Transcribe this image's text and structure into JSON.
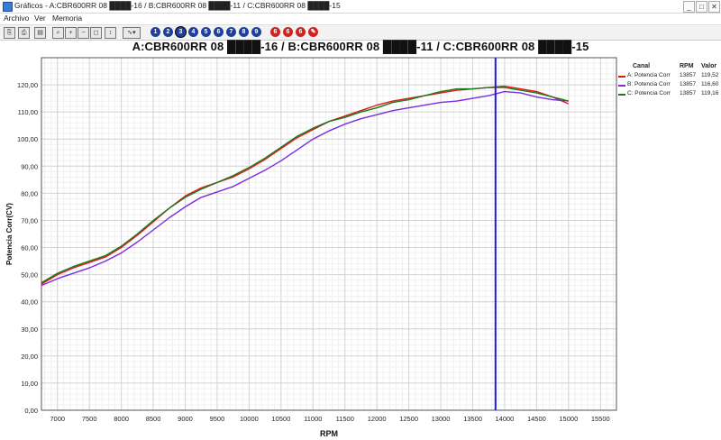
{
  "window": {
    "title": "Gráficos - A:CBR600RR 08 ████-16 / B:CBR600RR 08 ████-11 / C:CBR600RR 08 ████-15",
    "minimize": "_",
    "maximize": "□",
    "close": "✕"
  },
  "menu": {
    "items": [
      "Archivo",
      "Ver",
      "Memoria"
    ]
  },
  "toolbar": {
    "icons": [
      "copy-icon",
      "print-icon",
      "book-icon",
      "zoom-fit-icon",
      "zoom-in-icon",
      "zoom-out-icon",
      "zoom-window-icon",
      "cursor-icon",
      "chart-type-icon"
    ],
    "blue_buttons": [
      "1",
      "2",
      "3",
      "4",
      "5",
      "6",
      "7",
      "8",
      "9"
    ],
    "red_buttons": [
      "6",
      "6",
      "6",
      "✎"
    ],
    "selected_blue": "3"
  },
  "chart_title": "A:CBR600RR 08 ████-16 / B:CBR600RR 08 ████-11 / C:CBR600RR 08 ████-15",
  "legend": {
    "headers": {
      "channel": "Canal",
      "rpm": "RPM",
      "value": "Valor"
    },
    "rows": [
      {
        "name": "A: Potencia Corr",
        "rpm": "13857",
        "value": "119,52",
        "color": "#e01818"
      },
      {
        "name": "B: Potencia Corr",
        "rpm": "13857",
        "value": "116,60",
        "color": "#7a2be0"
      },
      {
        "name": "C: Potencia Corr",
        "rpm": "13857",
        "value": "119,16",
        "color": "#1a7a1a"
      }
    ]
  },
  "chart_data": {
    "type": "line",
    "xlabel": "RPM",
    "ylabel": "Potencia Corr(CV)",
    "xlim": [
      6750,
      15750
    ],
    "ylim": [
      0,
      130
    ],
    "xticks": [
      "7000",
      "7500",
      "8000",
      "8500",
      "9000",
      "9500",
      "10000",
      "10500",
      "11000",
      "11500",
      "12000",
      "12500",
      "13000",
      "13500",
      "14000",
      "14500",
      "15000",
      "15500"
    ],
    "yticks": [
      "0,00",
      "10,00",
      "20,00",
      "30,00",
      "40,00",
      "50,00",
      "60,00",
      "70,00",
      "80,00",
      "90,00",
      "100,00",
      "110,00",
      "120,00"
    ],
    "cursor_rpm": 13857,
    "grid": true,
    "series": [
      {
        "name": "A: Potencia Corr",
        "color": "#e01818",
        "x": [
          6750,
          7000,
          7250,
          7500,
          7750,
          8000,
          8250,
          8500,
          8750,
          9000,
          9250,
          9500,
          9750,
          10000,
          10250,
          10500,
          10750,
          11000,
          11250,
          11500,
          11750,
          12000,
          12250,
          12500,
          12750,
          13000,
          13250,
          13500,
          13750,
          14000,
          14250,
          14500,
          14750,
          15000
        ],
        "y": [
          46.5,
          50,
          52.5,
          54.5,
          56.5,
          60,
          64.5,
          69.5,
          74.5,
          79,
          82,
          84,
          86,
          89,
          92.5,
          96.5,
          100.5,
          103.5,
          106.5,
          108.5,
          110.5,
          112.5,
          114,
          115,
          116,
          117,
          118,
          118.5,
          119,
          119.5,
          118.5,
          117.5,
          115.5,
          113
        ]
      },
      {
        "name": "B: Potencia Corr",
        "color": "#7a2be0",
        "x": [
          6750,
          7000,
          7250,
          7500,
          7750,
          8000,
          8250,
          8500,
          8750,
          9000,
          9250,
          9500,
          9750,
          10000,
          10250,
          10500,
          10750,
          11000,
          11250,
          11500,
          11750,
          12000,
          12250,
          12500,
          12750,
          13000,
          13250,
          13500,
          13750,
          14000,
          14250,
          14500,
          14750,
          15000
        ],
        "y": [
          46,
          48.5,
          50.5,
          52.5,
          55,
          58,
          62,
          66.5,
          71,
          75,
          78.5,
          80.5,
          82.5,
          85.5,
          88.5,
          92,
          96,
          100,
          103,
          105.5,
          107.5,
          109,
          110.5,
          111.5,
          112.5,
          113.5,
          114,
          115,
          116,
          117.5,
          117,
          115.5,
          114.5,
          114
        ]
      },
      {
        "name": "C: Potencia Corr",
        "color": "#1a7a1a",
        "x": [
          6750,
          7000,
          7250,
          7500,
          7750,
          8000,
          8250,
          8500,
          8750,
          9000,
          9250,
          9500,
          9750,
          10000,
          10250,
          10500,
          10750,
          11000,
          11250,
          11500,
          11750,
          12000,
          12250,
          12500,
          12750,
          13000,
          13250,
          13500,
          13750,
          14000,
          14250,
          14500,
          14750,
          15000
        ],
        "y": [
          47,
          50.5,
          53,
          55,
          57,
          60.5,
          65,
          70,
          74.5,
          78.5,
          81.5,
          84,
          86.5,
          89.5,
          93,
          97,
          101,
          104,
          106.5,
          108,
          110,
          111.5,
          113.5,
          114.5,
          116,
          117.5,
          118.5,
          118.5,
          119,
          119,
          118,
          117,
          115.5,
          114
        ]
      }
    ]
  }
}
